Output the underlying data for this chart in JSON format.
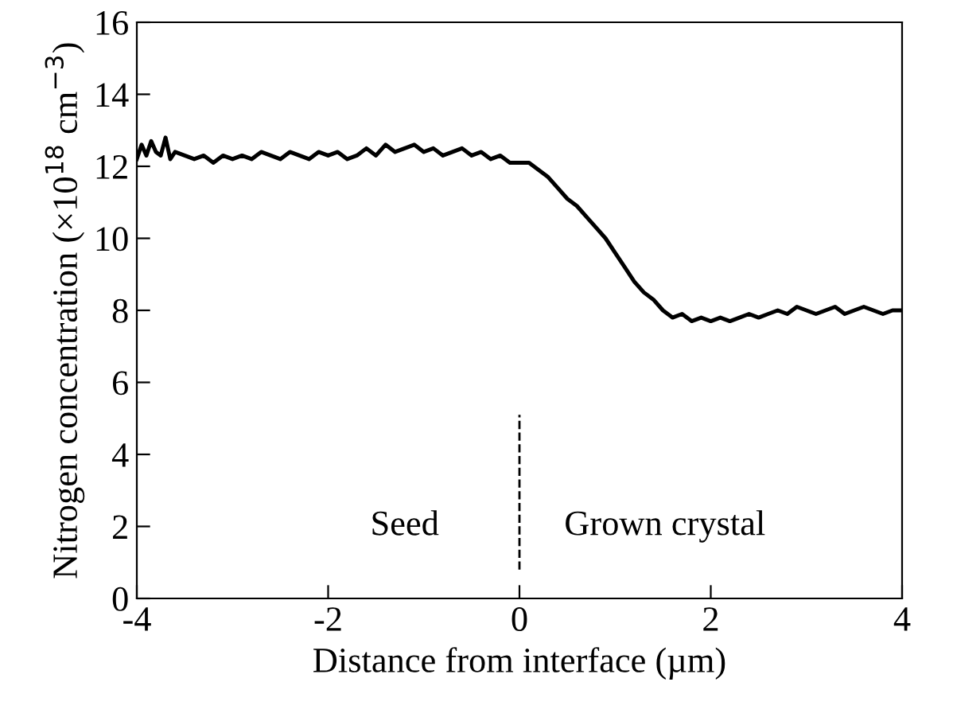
{
  "chart_data": {
    "type": "line",
    "xlabel": "Distance from interface (µm)",
    "ylabel": "Nitrogen concentration (×10$^{18}$ cm$^{−3}$)",
    "xlim": [
      -4,
      4
    ],
    "ylim": [
      0,
      16
    ],
    "xticks": [
      {
        "value": -4,
        "label": "-4"
      },
      {
        "value": -2,
        "label": "-2"
      },
      0,
      2,
      4
    ],
    "yticks": [
      0,
      2,
      4,
      6,
      8,
      10,
      12,
      14,
      16
    ],
    "grid": false,
    "legend": false,
    "marker": "none",
    "series": [
      {
        "color": "#000000",
        "line_style": "solid",
        "x": [
          -4,
          -3.95,
          -3.9,
          -3.85,
          -3.8,
          -3.75,
          -3.7,
          -3.65,
          -3.6,
          -3.5,
          -3.4,
          -3.3,
          -3.2,
          -3.1,
          -3.0,
          -2.9,
          -2.8,
          -2.7,
          -2.6,
          -2.5,
          -2.4,
          -2.3,
          -2.2,
          -2.1,
          -2.0,
          -1.9,
          -1.8,
          -1.7,
          -1.6,
          -1.5,
          -1.4,
          -1.3,
          -1.2,
          -1.1,
          -1.0,
          -0.9,
          -0.8,
          -0.7,
          -0.6,
          -0.5,
          -0.4,
          -0.3,
          -0.2,
          -0.1,
          0,
          0.1,
          0.2,
          0.3,
          0.4,
          0.5,
          0.6,
          0.7,
          0.8,
          0.9,
          1.0,
          1.1,
          1.2,
          1.3,
          1.4,
          1.5,
          1.6,
          1.7,
          1.8,
          1.9,
          2.0,
          2.1,
          2.2,
          2.3,
          2.4,
          2.5,
          2.6,
          2.7,
          2.8,
          2.9,
          3.0,
          3.1,
          3.2,
          3.3,
          3.4,
          3.5,
          3.6,
          3.7,
          3.8,
          3.9,
          4.0
        ],
        "values": [
          12.2,
          12.6,
          12.3,
          12.7,
          12.4,
          12.3,
          12.8,
          12.2,
          12.4,
          12.3,
          12.2,
          12.3,
          12.1,
          12.3,
          12.2,
          12.3,
          12.2,
          12.4,
          12.3,
          12.2,
          12.4,
          12.3,
          12.2,
          12.4,
          12.3,
          12.4,
          12.2,
          12.3,
          12.5,
          12.3,
          12.6,
          12.4,
          12.5,
          12.6,
          12.4,
          12.5,
          12.3,
          12.4,
          12.5,
          12.3,
          12.4,
          12.2,
          12.3,
          12.1,
          12.1,
          12.1,
          11.9,
          11.7,
          11.4,
          11.1,
          10.9,
          10.6,
          10.3,
          10.0,
          9.6,
          9.2,
          8.8,
          8.5,
          8.3,
          8.0,
          7.8,
          7.9,
          7.7,
          7.8,
          7.7,
          7.8,
          7.7,
          7.8,
          7.9,
          7.8,
          7.9,
          8.0,
          7.9,
          8.1,
          8.0,
          7.9,
          8.0,
          8.1,
          7.9,
          8.0,
          8.1,
          8.0,
          7.9,
          8.0,
          8.0
        ]
      },
      {
        "color": "#000000",
        "line_style": "dashed",
        "x": [
          0,
          0
        ],
        "values": [
          0.8,
          5.1
        ]
      }
    ],
    "annotations": [
      "Seed",
      "Grown crystal"
    ]
  }
}
